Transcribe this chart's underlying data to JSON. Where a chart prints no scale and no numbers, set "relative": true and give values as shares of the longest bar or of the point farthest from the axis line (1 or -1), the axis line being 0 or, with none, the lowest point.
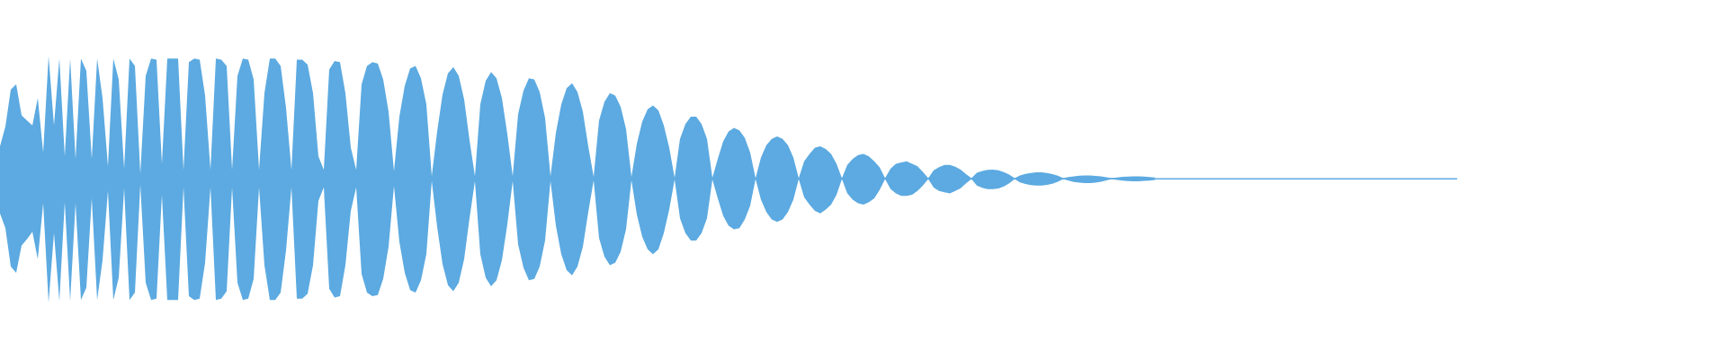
{
  "chart_data": {
    "type": "area",
    "relative": true,
    "tick_labels": false,
    "ref_lines": [
      {
        "axis": "y",
        "value": 0,
        "color": "#5caae1"
      }
    ],
    "categories": [
      null,
      null,
      null,
      null,
      null,
      null,
      null,
      null,
      null,
      null,
      null,
      null,
      null,
      null,
      null,
      null,
      null,
      null,
      null,
      null,
      null,
      null,
      null,
      null,
      null,
      null,
      null,
      null,
      null,
      null,
      null,
      null,
      null,
      null,
      null,
      null,
      null,
      null,
      null,
      null,
      null,
      null,
      null,
      null,
      null,
      null,
      null,
      null,
      null,
      null,
      null,
      null,
      null,
      null,
      null,
      null,
      null,
      null,
      null,
      null,
      null,
      null,
      null,
      null,
      null,
      null,
      null,
      null,
      null,
      null,
      null,
      null,
      null,
      null,
      null,
      null,
      null,
      null,
      null,
      null,
      null,
      null,
      null,
      null,
      null,
      null,
      null,
      null,
      null,
      null,
      null,
      null,
      null,
      null,
      null,
      null,
      null,
      null,
      null,
      null,
      null,
      null,
      null,
      null,
      null,
      null,
      null,
      null,
      null,
      null,
      null,
      null,
      null,
      null,
      null,
      null,
      null,
      null,
      null,
      null,
      null,
      null,
      null,
      null,
      null,
      null,
      null,
      null,
      null,
      null,
      null,
      null,
      null,
      null,
      null,
      null,
      null,
      null,
      null,
      null,
      null,
      null,
      null,
      null,
      null,
      null,
      null,
      null,
      null,
      null,
      null,
      null,
      null,
      null,
      null,
      null,
      null,
      null,
      null,
      null,
      null,
      null,
      null,
      null,
      null,
      null,
      null,
      null,
      null,
      null,
      null,
      null,
      null,
      null,
      null,
      null,
      null,
      null,
      null,
      null,
      null,
      null,
      null,
      null,
      null,
      null,
      null,
      null,
      null,
      null,
      null,
      null,
      null,
      null,
      null,
      null,
      null,
      null,
      null,
      null,
      null,
      null,
      null,
      null,
      null,
      null,
      null,
      null,
      null,
      null,
      null,
      null,
      null,
      null,
      null,
      null,
      null,
      null,
      null,
      null,
      null,
      null,
      null,
      null,
      null,
      null,
      null,
      null,
      null,
      null,
      null,
      null,
      null,
      null,
      null,
      null,
      null,
      null,
      null,
      null,
      null,
      null,
      null,
      null,
      null,
      null,
      null,
      null,
      null,
      null,
      null,
      null,
      null,
      null,
      null,
      null,
      null,
      null,
      null,
      null,
      null,
      null,
      null,
      null,
      null,
      null,
      null,
      null,
      null,
      null,
      null
    ],
    "series": [
      {
        "color": "#5caae1",
        "values": [
          0.26,
          0.42,
          0.72,
          0.76,
          0.51,
          0.47,
          0.43,
          0.65,
          0.21,
          0.99,
          0.43,
          0.97,
          0.18,
          0.97,
          0.16,
          0.97,
          0.87,
          0.16,
          0.97,
          0.65,
          0.1,
          0.97,
          0.8,
          0.08,
          0.97,
          0.91,
          0.04,
          0.83,
          0.97,
          0.96,
          0.12,
          0.97,
          0.97,
          0.97,
          0.07,
          0.94,
          0.97,
          0.96,
          0.67,
          0.07,
          0.97,
          0.96,
          0.91,
          0.07,
          0.83,
          0.97,
          0.96,
          0.8,
          0.07,
          0.69,
          0.97,
          0.97,
          0.91,
          0.57,
          0.07,
          0.96,
          0.96,
          0.92,
          0.69,
          0.18,
          0.07,
          0.88,
          0.95,
          0.94,
          0.69,
          0.25,
          0.07,
          0.76,
          0.91,
          0.94,
          0.93,
          0.8,
          0.54,
          0.06,
          0.5,
          0.75,
          0.89,
          0.91,
          0.81,
          0.6,
          0.02,
          0.38,
          0.68,
          0.85,
          0.9,
          0.83,
          0.64,
          0.31,
          0.02,
          0.6,
          0.79,
          0.86,
          0.81,
          0.65,
          0.36,
          0.02,
          0.52,
          0.71,
          0.81,
          0.8,
          0.7,
          0.49,
          0.02,
          0.37,
          0.6,
          0.73,
          0.77,
          0.7,
          0.54,
          0.26,
          0.015,
          0.47,
          0.62,
          0.69,
          0.67,
          0.58,
          0.4,
          0.015,
          0.28,
          0.46,
          0.56,
          0.59,
          0.55,
          0.43,
          0.25,
          0.007,
          0.32,
          0.44,
          0.5,
          0.5,
          0.44,
          0.32,
          0.007,
          0.16,
          0.3,
          0.38,
          0.41,
          0.39,
          0.33,
          0.21,
          0.004,
          0.17,
          0.27,
          0.32,
          0.34,
          0.32,
          0.27,
          0.17,
          0.004,
          0.14,
          0.2,
          0.25,
          0.26,
          0.24,
          0.2,
          0.12,
          0.004,
          0.11,
          0.16,
          0.19,
          0.2,
          0.18,
          0.14,
          0.09,
          0.004,
          0.08,
          0.12,
          0.13,
          0.14,
          0.12,
          0.1,
          0.054,
          0.004,
          0.067,
          0.093,
          0.11,
          0.11,
          0.096,
          0.072,
          0.036,
          0.004,
          0.047,
          0.062,
          0.071,
          0.072,
          0.067,
          0.053,
          0.032,
          0.004,
          0.026,
          0.038,
          0.046,
          0.05,
          0.05,
          0.045,
          0.036,
          0.023,
          0.004,
          0.012,
          0.019,
          0.023,
          0.025,
          0.025,
          0.022,
          0.018,
          0.011,
          0.004,
          0.009,
          0.014,
          0.017,
          0.018,
          0.018,
          0.016,
          0.013,
          0.009,
          null,
          null,
          null,
          null,
          null,
          null,
          null,
          null,
          null,
          null,
          null,
          null,
          null,
          null,
          null,
          null,
          null,
          null,
          null,
          null,
          null,
          null,
          null,
          null,
          null,
          null,
          null,
          null,
          null,
          null,
          null,
          null,
          null,
          null,
          null,
          null,
          null,
          null,
          null,
          null,
          null,
          null,
          null,
          null,
          null,
          null,
          null,
          null,
          null,
          null,
          null,
          null,
          null,
          null,
          null,
          null
        ]
      },
      {
        "color": "#5caae1",
        "values": [
          -0.28,
          -0.4,
          -0.71,
          -0.76,
          -0.54,
          -0.49,
          -0.43,
          -0.65,
          -0.2,
          -1,
          -0.44,
          -0.99,
          -0.19,
          -0.99,
          -0.2,
          -0.98,
          -0.88,
          -0.16,
          -0.98,
          -0.66,
          -0.1,
          -0.98,
          -0.8,
          -0.08,
          -0.98,
          -0.92,
          -0.05,
          -0.84,
          -0.98,
          -0.97,
          -0.13,
          -0.98,
          -0.98,
          -0.98,
          -0.07,
          -0.95,
          -0.98,
          -0.97,
          -0.68,
          -0.07,
          -0.98,
          -0.97,
          -0.91,
          -0.07,
          -0.84,
          -0.98,
          -0.97,
          -0.81,
          -0.07,
          -0.7,
          -0.98,
          -0.98,
          -0.92,
          -0.58,
          -0.07,
          -0.97,
          -0.97,
          -0.93,
          -0.7,
          -0.18,
          -0.07,
          -0.89,
          -0.96,
          -0.95,
          -0.7,
          -0.26,
          -0.07,
          -0.77,
          -0.92,
          -0.95,
          -0.94,
          -0.81,
          -0.55,
          -0.06,
          -0.51,
          -0.76,
          -0.9,
          -0.92,
          -0.82,
          -0.61,
          -0.02,
          -0.39,
          -0.69,
          -0.86,
          -0.91,
          -0.84,
          -0.65,
          -0.32,
          -0.02,
          -0.61,
          -0.8,
          -0.87,
          -0.82,
          -0.66,
          -0.37,
          -0.02,
          -0.53,
          -0.72,
          -0.82,
          -0.81,
          -0.71,
          -0.5,
          -0.02,
          -0.38,
          -0.61,
          -0.74,
          -0.78,
          -0.71,
          -0.55,
          -0.27,
          -0.015,
          -0.48,
          -0.63,
          -0.7,
          -0.68,
          -0.59,
          -0.41,
          -0.015,
          -0.29,
          -0.47,
          -0.57,
          -0.61,
          -0.57,
          -0.44,
          -0.25,
          -0.007,
          -0.32,
          -0.44,
          -0.5,
          -0.5,
          -0.44,
          -0.32,
          -0.007,
          -0.16,
          -0.3,
          -0.38,
          -0.41,
          -0.4,
          -0.33,
          -0.22,
          -0.004,
          -0.17,
          -0.27,
          -0.33,
          -0.35,
          -0.33,
          -0.27,
          -0.17,
          -0.004,
          -0.15,
          -0.21,
          -0.26,
          -0.28,
          -0.25,
          -0.21,
          -0.13,
          -0.004,
          -0.12,
          -0.17,
          -0.2,
          -0.21,
          -0.19,
          -0.16,
          -0.09,
          -0.004,
          -0.084,
          -0.12,
          -0.14,
          -0.14,
          -0.13,
          -0.1,
          -0.057,
          -0.004,
          -0.072,
          -0.1,
          -0.11,
          -0.12,
          -0.1,
          -0.078,
          -0.038,
          -0.004,
          -0.057,
          -0.075,
          -0.085,
          -0.086,
          -0.08,
          -0.064,
          -0.038,
          -0.004,
          -0.03,
          -0.044,
          -0.053,
          -0.057,
          -0.057,
          -0.051,
          -0.041,
          -0.026,
          -0.004,
          -0.017,
          -0.027,
          -0.033,
          -0.036,
          -0.036,
          -0.032,
          -0.026,
          -0.015,
          -0.004,
          -0.011,
          -0.017,
          -0.02,
          -0.022,
          -0.022,
          -0.019,
          -0.016,
          -0.01,
          null,
          null,
          null,
          null,
          null,
          null,
          null,
          null,
          null,
          null,
          null,
          null,
          null,
          null,
          null,
          null,
          null,
          null,
          null,
          null,
          null,
          null,
          null,
          null,
          null,
          null,
          null,
          null,
          null,
          null,
          null,
          null,
          null,
          null,
          null,
          null,
          null,
          null,
          null,
          null,
          null,
          null,
          null,
          null,
          null,
          null,
          null,
          null,
          null,
          null,
          null,
          null,
          null,
          null,
          null,
          null
        ]
      }
    ]
  }
}
